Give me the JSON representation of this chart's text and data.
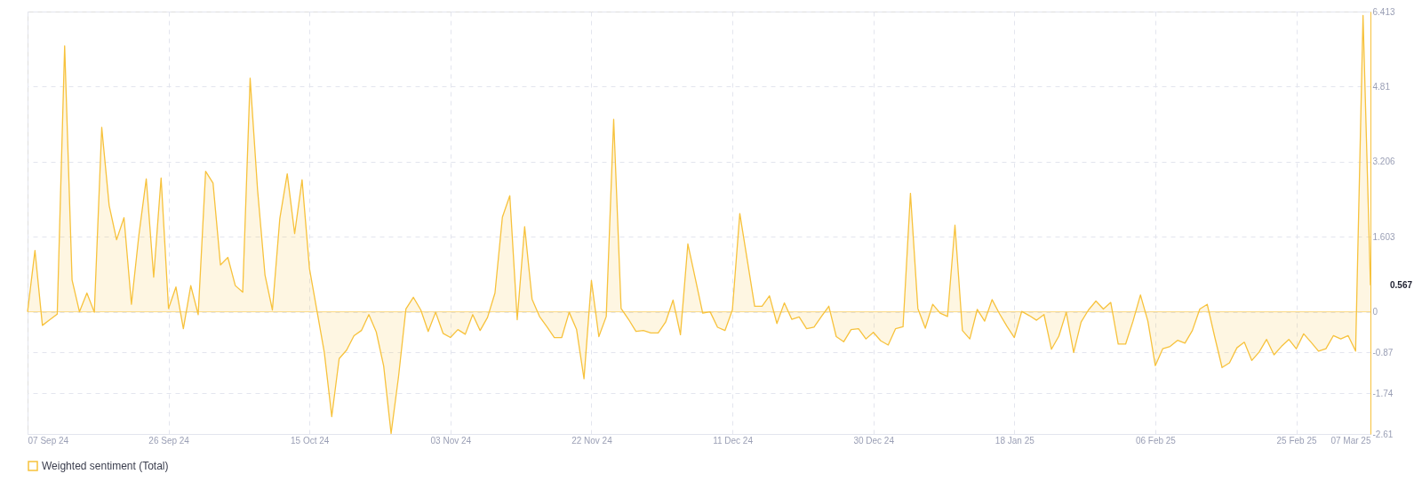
{
  "chart_data": {
    "type": "area",
    "x": [
      "2024-09-07",
      "2024-09-08",
      "2024-09-09",
      "2024-09-10",
      "2024-09-11",
      "2024-09-12",
      "2024-09-13",
      "2024-09-14",
      "2024-09-15",
      "2024-09-16",
      "2024-09-17",
      "2024-09-18",
      "2024-09-19",
      "2024-09-20",
      "2024-09-21",
      "2024-09-22",
      "2024-09-23",
      "2024-09-24",
      "2024-09-25",
      "2024-09-26",
      "2024-09-27",
      "2024-09-28",
      "2024-09-29",
      "2024-09-30",
      "2024-10-01",
      "2024-10-02",
      "2024-10-03",
      "2024-10-04",
      "2024-10-05",
      "2024-10-06",
      "2024-10-07",
      "2024-10-08",
      "2024-10-09",
      "2024-10-10",
      "2024-10-11",
      "2024-10-12",
      "2024-10-13",
      "2024-10-14",
      "2024-10-15",
      "2024-10-16",
      "2024-10-17",
      "2024-10-18",
      "2024-10-19",
      "2024-10-20",
      "2024-10-21",
      "2024-10-22",
      "2024-10-23",
      "2024-10-24",
      "2024-10-25",
      "2024-10-26",
      "2024-10-27",
      "2024-10-28",
      "2024-10-29",
      "2024-10-30",
      "2024-10-31",
      "2024-11-01",
      "2024-11-02",
      "2024-11-03",
      "2024-11-04",
      "2024-11-05",
      "2024-11-06",
      "2024-11-07",
      "2024-11-08",
      "2024-11-09",
      "2024-11-10",
      "2024-11-11",
      "2024-11-12",
      "2024-11-13",
      "2024-11-14",
      "2024-11-15",
      "2024-11-16",
      "2024-11-17",
      "2024-11-18",
      "2024-11-19",
      "2024-11-20",
      "2024-11-21",
      "2024-11-22",
      "2024-11-23",
      "2024-11-24",
      "2024-11-25",
      "2024-11-26",
      "2024-11-27",
      "2024-11-28",
      "2024-11-29",
      "2024-11-30",
      "2024-12-01",
      "2024-12-02",
      "2024-12-03",
      "2024-12-04",
      "2024-12-05",
      "2024-12-06",
      "2024-12-07",
      "2024-12-08",
      "2024-12-09",
      "2024-12-10",
      "2024-12-11",
      "2024-12-12",
      "2024-12-13",
      "2024-12-14",
      "2024-12-15",
      "2024-12-16",
      "2024-12-17",
      "2024-12-18",
      "2024-12-19",
      "2024-12-20",
      "2024-12-21",
      "2024-12-22",
      "2024-12-23",
      "2024-12-24",
      "2024-12-25",
      "2024-12-26",
      "2024-12-27",
      "2024-12-28",
      "2024-12-29",
      "2024-12-30",
      "2024-12-31",
      "2025-01-01",
      "2025-01-02",
      "2025-01-03",
      "2025-01-04",
      "2025-01-05",
      "2025-01-06",
      "2025-01-07",
      "2025-01-08",
      "2025-01-09",
      "2025-01-10",
      "2025-01-11",
      "2025-01-12",
      "2025-01-13",
      "2025-01-14",
      "2025-01-15",
      "2025-01-16",
      "2025-01-17",
      "2025-01-18",
      "2025-01-19",
      "2025-01-20",
      "2025-01-21",
      "2025-01-22",
      "2025-01-23",
      "2025-01-24",
      "2025-01-25",
      "2025-01-26",
      "2025-01-27",
      "2025-01-28",
      "2025-01-29",
      "2025-01-30",
      "2025-01-31",
      "2025-02-01",
      "2025-02-02",
      "2025-02-03",
      "2025-02-04",
      "2025-02-05",
      "2025-02-06",
      "2025-02-07",
      "2025-02-08",
      "2025-02-09",
      "2025-02-10",
      "2025-02-11",
      "2025-02-12",
      "2025-02-13",
      "2025-02-14",
      "2025-02-15",
      "2025-02-16",
      "2025-02-17",
      "2025-02-18",
      "2025-02-19",
      "2025-02-20",
      "2025-02-21",
      "2025-02-22",
      "2025-02-23",
      "2025-02-24",
      "2025-02-25",
      "2025-02-26",
      "2025-02-27",
      "2025-02-28",
      "2025-03-01",
      "2025-03-02",
      "2025-03-03",
      "2025-03-04",
      "2025-03-05",
      "2025-03-06",
      "2025-03-07"
    ],
    "series": [
      {
        "name": "Weighted sentiment (Total)",
        "color": "#f7c23c",
        "values": [
          0,
          1.31,
          -0.29,
          -0.17,
          -0.05,
          5.68,
          0.68,
          0.0,
          0.4,
          -0.01,
          3.94,
          2.27,
          1.54,
          2.01,
          0.16,
          1.63,
          2.84,
          0.74,
          2.86,
          0.07,
          0.53,
          -0.36,
          0.56,
          -0.06,
          3.0,
          2.75,
          1.0,
          1.16,
          0.56,
          0.42,
          4.99,
          2.61,
          0.79,
          0.04,
          1.99,
          2.95,
          1.67,
          2.82,
          0.92,
          0.03,
          -0.87,
          -2.24,
          -1.0,
          -0.82,
          -0.51,
          -0.4,
          -0.06,
          -0.43,
          -1.16,
          -2.6,
          -1.39,
          0.06,
          0.31,
          0.04,
          -0.42,
          -0.01,
          -0.46,
          -0.55,
          -0.38,
          -0.48,
          -0.06,
          -0.4,
          -0.12,
          0.4,
          2.02,
          2.48,
          -0.17,
          1.82,
          0.27,
          -0.1,
          -0.32,
          -0.55,
          -0.55,
          -0.01,
          -0.38,
          -1.43,
          0.67,
          -0.53,
          -0.1,
          4.11,
          0.07,
          -0.16,
          -0.42,
          -0.4,
          -0.45,
          -0.45,
          -0.22,
          0.25,
          -0.49,
          1.45,
          0.71,
          -0.03,
          0.0,
          -0.33,
          -0.4,
          0.04,
          2.1,
          1.11,
          0.12,
          0.12,
          0.34,
          -0.25,
          0.19,
          -0.16,
          -0.11,
          -0.36,
          -0.33,
          -0.1,
          0.12,
          -0.53,
          -0.64,
          -0.38,
          -0.36,
          -0.58,
          -0.44,
          -0.62,
          -0.71,
          -0.36,
          -0.32,
          2.53,
          0.07,
          -0.35,
          0.16,
          -0.03,
          -0.1,
          1.85,
          -0.4,
          -0.58,
          0.05,
          -0.2,
          0.26,
          -0.04,
          -0.31,
          -0.55,
          0.01,
          -0.08,
          -0.18,
          -0.06,
          -0.8,
          -0.52,
          -0.01,
          -0.87,
          -0.22,
          0.04,
          0.23,
          0.06,
          0.2,
          -0.69,
          -0.69,
          -0.2,
          0.36,
          -0.2,
          -1.15,
          -0.79,
          -0.74,
          -0.61,
          -0.67,
          -0.4,
          0.06,
          0.16,
          -0.53,
          -1.19,
          -1.09,
          -0.77,
          -0.65,
          -1.04,
          -0.86,
          -0.59,
          -0.92,
          -0.74,
          -0.59,
          -0.79,
          -0.47,
          -0.65,
          -0.84,
          -0.79,
          -0.51,
          -0.58,
          -0.51,
          -0.84,
          6.33,
          0.567
        ]
      }
    ],
    "xlim": [
      "2024-09-07",
      "2025-03-07"
    ],
    "xticks": [
      {
        "value": "2024-09-07",
        "label": "07 Sep 24"
      },
      {
        "value": "2024-09-26",
        "label": "26 Sep 24"
      },
      {
        "value": "2024-10-15",
        "label": "15 Oct 24"
      },
      {
        "value": "2024-11-03",
        "label": "03 Nov 24"
      },
      {
        "value": "2024-11-22",
        "label": "22 Nov 24"
      },
      {
        "value": "2024-12-11",
        "label": "11 Dec 24"
      },
      {
        "value": "2024-12-30",
        "label": "30 Dec 24"
      },
      {
        "value": "2025-01-18",
        "label": "18 Jan 25"
      },
      {
        "value": "2025-02-06",
        "label": "06 Feb 25"
      },
      {
        "value": "2025-02-25",
        "label": "25 Feb 25"
      },
      {
        "value": "2025-03-07",
        "label": "07 Mar 25"
      }
    ],
    "ylim": [
      -2.61,
      6.413
    ],
    "yticks": [
      -2.61,
      -1.74,
      -0.87,
      0,
      1.603,
      3.206,
      4.81,
      6.413
    ],
    "annotations": [
      {
        "text": "0.567",
        "x": "2025-03-07",
        "y": 0.567
      }
    ],
    "ref_lines": [
      {
        "axis": "y",
        "value": 0,
        "color": "#f7c23c"
      }
    ],
    "grid": true,
    "legend": "bottom"
  }
}
